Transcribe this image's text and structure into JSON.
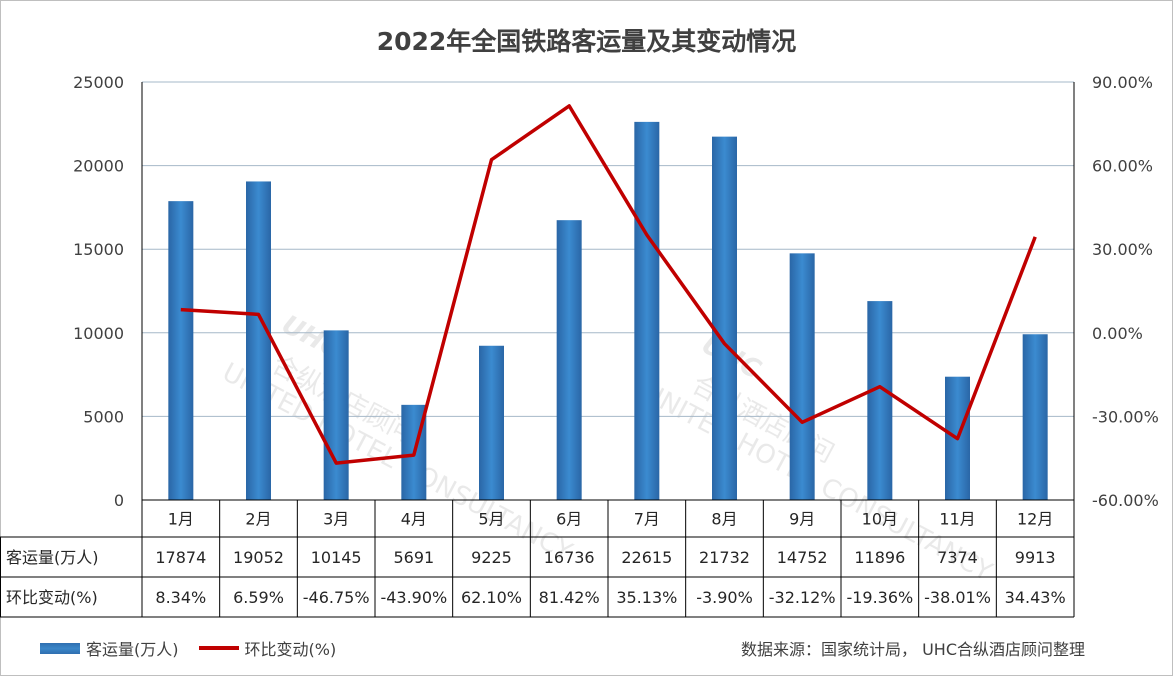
{
  "chart_data": {
    "type": "bar",
    "title": "2022年全国铁路客运量及其变动情况",
    "categories": [
      "1月",
      "2月",
      "3月",
      "4月",
      "5月",
      "6月",
      "7月",
      "8月",
      "9月",
      "10月",
      "11月",
      "12月"
    ],
    "series": [
      {
        "name": "客运量(万人)",
        "type": "bar",
        "axis": "left",
        "values": [
          17874,
          19052,
          10145,
          5691,
          9225,
          16736,
          22615,
          21732,
          14752,
          11896,
          7374,
          9913
        ],
        "labels": [
          "17874",
          "19052",
          "10145",
          "5691",
          "9225",
          "16736",
          "22615",
          "21732",
          "14752",
          "11896",
          "7374",
          "9913"
        ]
      },
      {
        "name": "环比变动(%)",
        "type": "line",
        "axis": "right",
        "values": [
          8.34,
          6.59,
          -46.75,
          -43.9,
          62.1,
          81.42,
          35.13,
          -3.9,
          -32.12,
          -19.36,
          -38.01,
          34.43
        ],
        "labels": [
          "8.34%",
          "6.59%",
          "-46.75%",
          "-43.90%",
          "62.10%",
          "81.42%",
          "35.13%",
          "-3.90%",
          "-32.12%",
          "-19.36%",
          "-38.01%",
          "34.43%"
        ]
      }
    ],
    "ylim_left": [
      0,
      25000
    ],
    "yticks_left": [
      "0",
      "5000",
      "10000",
      "15000",
      "20000",
      "25000"
    ],
    "ylim_right": [
      -60,
      90
    ],
    "yticks_right": [
      "-60.00%",
      "-30.00%",
      "0.00%",
      "30.00%",
      "60.00%",
      "90.00%"
    ],
    "grid": true,
    "data_table": true,
    "legend_position": "bottom-left",
    "colors": {
      "bar": "#2e75b6",
      "line": "#c00000",
      "grid": "#a6b8c8"
    }
  },
  "legend": {
    "bar_label": "客运量(万人)",
    "line_label": "环比变动(%)"
  },
  "source": "数据来源：国家统计局， UHC合纵酒店顾问整理",
  "watermark": {
    "logo": "UHC",
    "cn": "合纵酒店顾问",
    "en": "UNITED HOTEL CONSULTANCY"
  }
}
